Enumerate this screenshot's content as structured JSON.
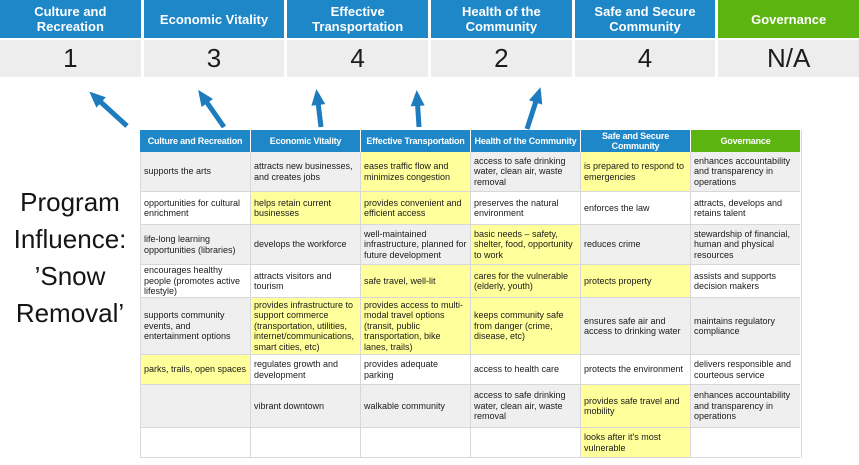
{
  "colors": {
    "header_blue": "#1E87C8",
    "header_green": "#5CB410",
    "highlight_yellow": "#FFFF9B",
    "row_stripe_gray": "#EFEFEF",
    "score_strip_gray": "#EDEDED",
    "arrow_blue": "#1E7CBE"
  },
  "banner": {
    "categories": [
      {
        "label": "Culture and Recreation",
        "score": "1",
        "style": "blue"
      },
      {
        "label": "Economic Vitality",
        "score": "3",
        "style": "blue"
      },
      {
        "label": "Effective Transportation",
        "score": "4",
        "style": "blue"
      },
      {
        "label": "Health of the Community",
        "score": "2",
        "style": "blue"
      },
      {
        "label": "Safe and Secure Community",
        "score": "4",
        "style": "blue"
      },
      {
        "label": "Governance",
        "score": "N/A",
        "style": "green"
      }
    ]
  },
  "program_label": {
    "text": "Program Influence: ’Snow Removal’",
    "lines": [
      "Program",
      "Influence:",
      "’Snow",
      "Removal’"
    ]
  },
  "matrix": {
    "headers": [
      {
        "label": "Culture and Recreation",
        "style": "blue"
      },
      {
        "label": "Economic Vitality",
        "style": "blue"
      },
      {
        "label": "Effective Transportation",
        "style": "blue"
      },
      {
        "label": "Health of the Community",
        "style": "blue"
      },
      {
        "label": "Safe and Secure Community",
        "style": "blue"
      },
      {
        "label": "Governance",
        "style": "green"
      }
    ],
    "rows": [
      {
        "cells": [
          {
            "text": "supports the arts",
            "highlight": false
          },
          {
            "text": "attracts new businesses, and creates jobs",
            "highlight": false
          },
          {
            "text": "eases traffic flow and minimizes congestion",
            "highlight": true
          },
          {
            "text": "access to safe drinking water, clean air, waste removal",
            "highlight": false
          },
          {
            "text": "is prepared to respond to emergencies",
            "highlight": true
          },
          {
            "text": "enhances accountability and transparency in operations",
            "highlight": false
          }
        ]
      },
      {
        "cells": [
          {
            "text": "opportunities for cultural enrichment",
            "highlight": false
          },
          {
            "text": "helps retain current businesses",
            "highlight": true
          },
          {
            "text": "provides convenient and efficient access",
            "highlight": true
          },
          {
            "text": "preserves the natural environment",
            "highlight": false
          },
          {
            "text": "enforces the law",
            "highlight": false
          },
          {
            "text": "attracts, develops and retains talent",
            "highlight": false
          }
        ]
      },
      {
        "cells": [
          {
            "text": "life-long learning opportunities (libraries)",
            "highlight": false
          },
          {
            "text": "develops the workforce",
            "highlight": false
          },
          {
            "text": "well-maintained infrastructure, planned for future development",
            "highlight": false
          },
          {
            "text": "basic needs – safety, shelter, food, opportunity to work",
            "highlight": true
          },
          {
            "text": "reduces crime",
            "highlight": false
          },
          {
            "text": "stewardship of financial, human and physical resources",
            "highlight": false
          }
        ]
      },
      {
        "cells": [
          {
            "text": "encourages healthy people (promotes active lifestyle)",
            "highlight": false
          },
          {
            "text": "attracts visitors and tourism",
            "highlight": false
          },
          {
            "text": "safe travel, well-lit",
            "highlight": true
          },
          {
            "text": "cares for the vulnerable (elderly, youth)",
            "highlight": true
          },
          {
            "text": "protects property",
            "highlight": true
          },
          {
            "text": "assists and supports decision makers",
            "highlight": false
          }
        ]
      },
      {
        "cells": [
          {
            "text": "supports community events, and entertainment options",
            "highlight": false
          },
          {
            "text": "provides infrastructure to support commerce (transportation, utilities, internet/communications, smart cities, etc)",
            "highlight": true
          },
          {
            "text": "provides access to multi-modal travel options (transit, public transportation, bike lanes, trails)",
            "highlight": true
          },
          {
            "text": "keeps community safe from danger (crime, disease, etc)",
            "highlight": true
          },
          {
            "text": "ensures safe air and access to drinking water",
            "highlight": false
          },
          {
            "text": "maintains regulatory compliance",
            "highlight": false
          }
        ]
      },
      {
        "cells": [
          {
            "text": "parks, trails, open spaces",
            "highlight": true
          },
          {
            "text": "regulates growth and development",
            "highlight": false
          },
          {
            "text": "provides adequate parking",
            "highlight": false
          },
          {
            "text": "access to health care",
            "highlight": false
          },
          {
            "text": "protects the environment",
            "highlight": false
          },
          {
            "text": "delivers responsible and courteous service",
            "highlight": false
          }
        ]
      },
      {
        "cells": [
          {
            "text": "",
            "highlight": false
          },
          {
            "text": "vibrant downtown",
            "highlight": false
          },
          {
            "text": "walkable community",
            "highlight": false
          },
          {
            "text": "access to safe drinking water, clean air, waste removal",
            "highlight": false
          },
          {
            "text": "provides safe travel and mobility",
            "highlight": true
          },
          {
            "text": "enhances accountability and transparency in operations",
            "highlight": false
          }
        ]
      },
      {
        "cells": [
          {
            "text": "",
            "highlight": false
          },
          {
            "text": "",
            "highlight": false
          },
          {
            "text": "",
            "highlight": false
          },
          {
            "text": "",
            "highlight": false
          },
          {
            "text": "looks after it's most vulnerable",
            "highlight": true
          },
          {
            "text": "",
            "highlight": false
          }
        ]
      }
    ]
  }
}
